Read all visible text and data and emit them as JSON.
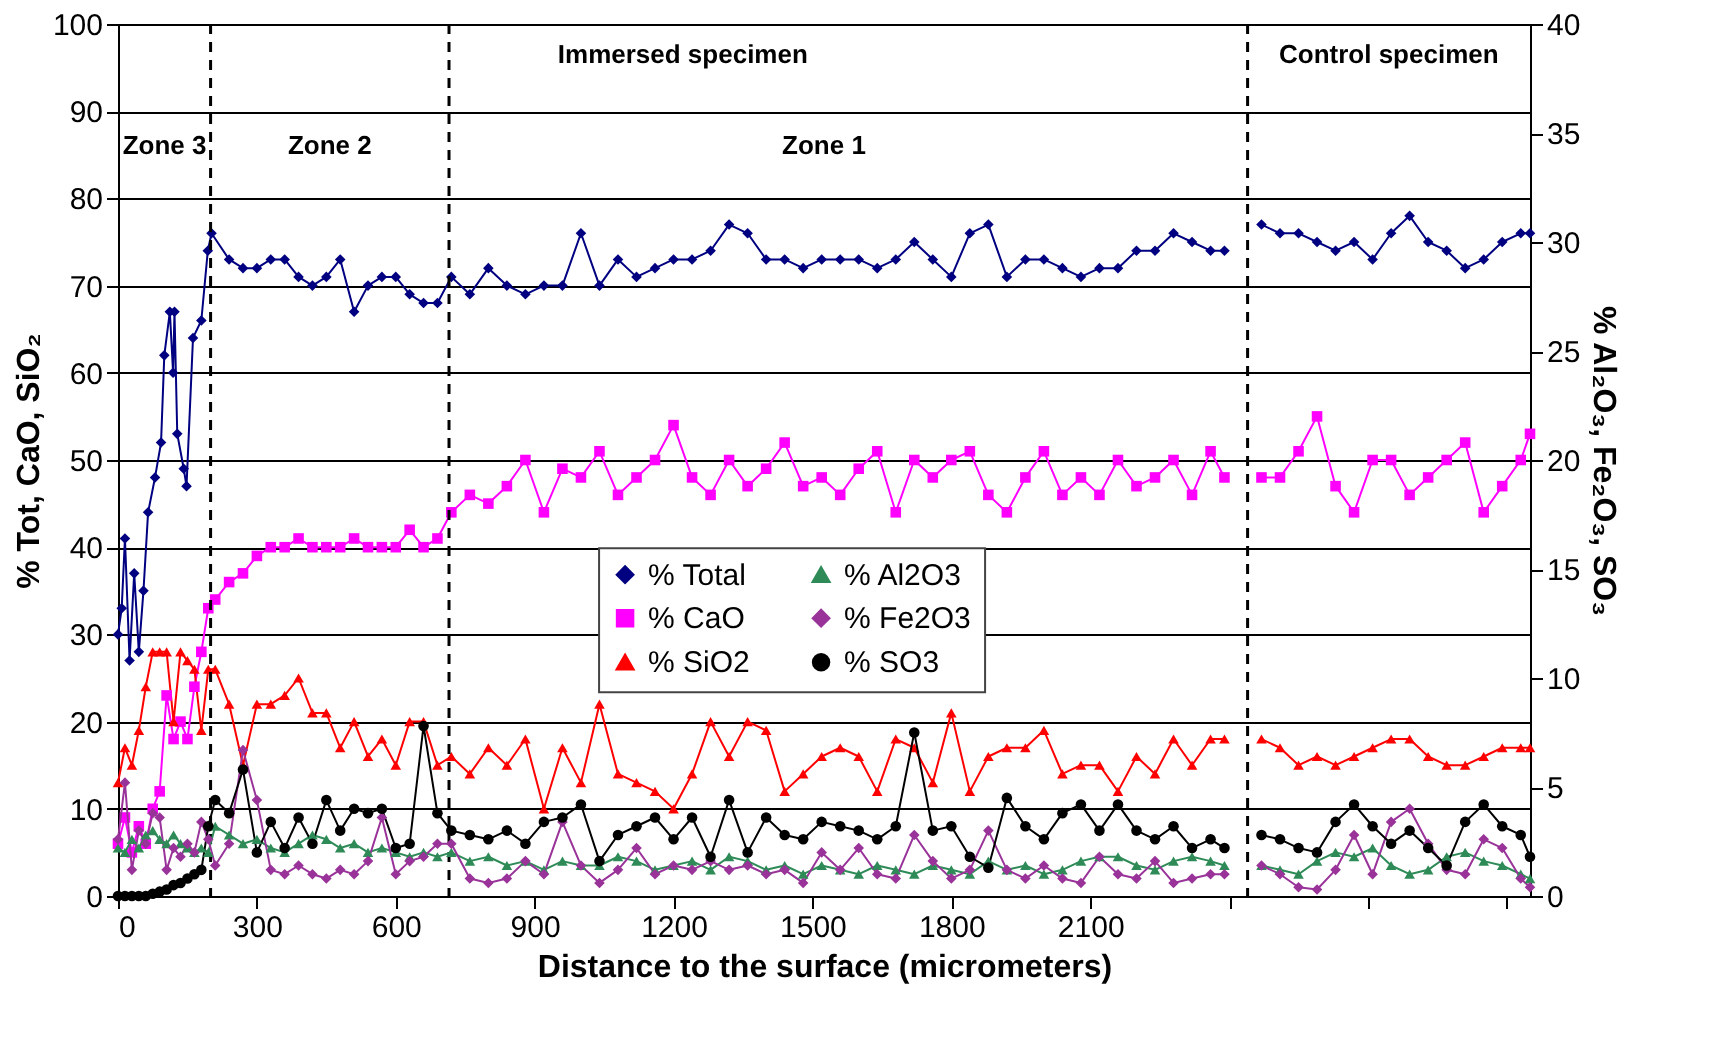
{
  "chart_data": {
    "type": "line",
    "xlabel": "Distance to the surface (micrometers)",
    "ylabel": "% Tot, CaO, SiO₂",
    "y2label": "% Al₂O₃, Fe₂O₃, SO₃",
    "xlim": [
      0,
      3050
    ],
    "ylim": [
      0,
      100
    ],
    "y2lim": [
      0,
      40
    ],
    "xticks": [
      0,
      300,
      600,
      900,
      1200,
      1500,
      1800,
      2100,
      {
        "value": 2400,
        "label": null
      },
      {
        "value": 2700,
        "label": null
      },
      {
        "value": 3000,
        "label": null
      }
    ],
    "yticks": [
      0,
      10,
      20,
      30,
      40,
      50,
      60,
      70,
      80,
      90,
      100
    ],
    "y2ticks": [
      0,
      5,
      10,
      15,
      20,
      25,
      30,
      35,
      40
    ],
    "grid": "y",
    "legend": "right",
    "annotations": [
      "Immersed specimen",
      "Control specimen",
      "Zone 3",
      "Zone 2",
      "Zone 1"
    ],
    "ref_lines": [
      {
        "axis": "x",
        "value": 200,
        "label": null,
        "line_style": "dashed"
      },
      {
        "axis": "x",
        "value": 715,
        "label": null,
        "line_style": "dashed"
      },
      {
        "axis": "x",
        "value": 2440,
        "label": null,
        "line_style": "dashed"
      }
    ],
    "x": [
      0,
      15,
      30,
      45,
      60,
      75,
      90,
      105,
      120,
      135,
      150,
      165,
      180,
      195,
      210,
      240,
      270,
      300,
      330,
      360,
      390,
      420,
      450,
      480,
      510,
      540,
      570,
      600,
      630,
      660,
      690,
      720,
      760,
      800,
      840,
      880,
      920,
      960,
      1000,
      1040,
      1080,
      1120,
      1160,
      1200,
      1240,
      1280,
      1320,
      1360,
      1400,
      1440,
      1480,
      1520,
      1560,
      1600,
      1640,
      1680,
      1720,
      1760,
      1800,
      1840,
      1880,
      1920,
      1960,
      2000,
      2040,
      2080,
      2120,
      2160,
      2200,
      2240,
      2280,
      2320,
      2360,
      2390,
      2440,
      2470,
      2510,
      2550,
      2590,
      2630,
      2670,
      2710,
      2750,
      2790,
      2830,
      2870,
      2910,
      2950,
      2990,
      3030,
      3050
    ],
    "series": [
      {
        "name": "% Total",
        "color": "#000080",
        "marker": "diamond",
        "x": [
          0,
          8,
          15,
          25,
          35,
          45,
          55,
          65,
          80,
          93,
          100,
          112,
          119,
          122,
          128,
          142,
          148,
          162,
          180,
          194,
          202,
          240,
          270,
          300,
          330,
          360,
          390,
          420,
          450,
          480,
          510,
          540,
          570,
          600,
          630,
          660,
          690,
          720,
          760,
          800,
          840,
          880,
          920,
          960,
          1000,
          1040,
          1080,
          1120,
          1160,
          1200,
          1240,
          1280,
          1320,
          1360,
          1400,
          1440,
          1480,
          1520,
          1560,
          1600,
          1640,
          1680,
          1720,
          1760,
          1800,
          1840,
          1880,
          1920,
          1960,
          2000,
          2040,
          2080,
          2120,
          2160,
          2200,
          2240,
          2280,
          2320,
          2360,
          2390,
          2440,
          2470,
          2510,
          2550,
          2590,
          2630,
          2670,
          2710,
          2750,
          2790,
          2830,
          2870,
          2910,
          2950,
          2990,
          3030,
          3050
        ],
        "values": [
          30,
          33,
          41,
          27,
          37,
          28,
          35,
          44,
          48,
          52,
          62,
          67,
          60,
          67,
          53,
          49,
          47,
          64,
          66,
          74,
          76,
          73,
          72,
          72,
          73,
          73,
          71,
          70,
          71,
          73,
          67,
          70,
          71,
          71,
          69,
          68,
          68,
          71,
          69,
          72,
          70,
          69,
          70,
          70,
          76,
          70,
          73,
          71,
          72,
          73,
          73,
          74,
          77,
          76,
          73,
          73,
          72,
          73,
          73,
          73,
          72,
          73,
          75,
          73,
          71,
          76,
          77,
          71,
          73,
          73,
          72,
          71,
          72,
          72,
          74,
          74,
          76,
          75,
          74,
          74,
          null,
          77,
          76,
          76,
          75,
          74,
          75,
          73,
          76,
          78,
          75,
          74,
          72,
          73,
          75,
          76,
          76
        ]
      },
      {
        "name": "% CaO",
        "color": "#ff00ff",
        "marker": "square",
        "values": [
          6,
          9,
          5,
          8,
          6,
          10,
          12,
          23,
          18,
          20,
          18,
          24,
          28,
          33,
          34,
          36,
          37,
          39,
          40,
          40,
          41,
          40,
          40,
          40,
          41,
          40,
          40,
          40,
          42,
          40,
          41,
          44,
          46,
          45,
          47,
          50,
          44,
          49,
          48,
          51,
          46,
          48,
          50,
          54,
          48,
          46,
          50,
          47,
          49,
          52,
          47,
          48,
          46,
          49,
          51,
          44,
          50,
          48,
          50,
          51,
          46,
          44,
          48,
          51,
          46,
          48,
          46,
          50,
          47,
          48,
          50,
          46,
          51,
          48,
          null,
          48,
          48,
          51,
          55,
          47,
          44,
          50,
          50,
          46,
          48,
          50,
          52,
          44,
          47,
          50,
          53
        ]
      },
      {
        "name": "% SiO2",
        "color": "#ff0000",
        "marker": "triangle",
        "values": [
          13,
          17,
          15,
          19,
          24,
          28,
          28,
          28,
          20,
          28,
          27,
          26,
          19,
          26,
          26,
          22,
          15,
          22,
          22,
          23,
          25,
          21,
          21,
          17,
          20,
          16,
          18,
          15,
          20,
          20,
          15,
          16,
          14,
          17,
          15,
          18,
          10,
          17,
          13,
          22,
          14,
          13,
          12,
          10,
          14,
          20,
          16,
          20,
          19,
          12,
          14,
          16,
          17,
          16,
          12,
          18,
          17,
          13,
          21,
          12,
          16,
          17,
          17,
          19,
          14,
          15,
          15,
          12,
          16,
          14,
          18,
          15,
          18,
          18,
          null,
          18,
          17,
          15,
          16,
          15,
          16,
          17,
          18,
          18,
          16,
          15,
          15,
          16,
          17,
          17,
          17
        ]
      },
      {
        "name": "% Al2O3",
        "color": "#2e8b57",
        "marker": "triangle",
        "axis": "y2",
        "values": [
          2.2,
          2.0,
          2.6,
          2.2,
          2.8,
          3.0,
          2.6,
          2.4,
          2.8,
          2.4,
          2.2,
          2.0,
          2.2,
          2.0,
          3.2,
          2.8,
          2.4,
          2.6,
          2.2,
          2.0,
          2.4,
          2.8,
          2.6,
          2.2,
          2.4,
          2.0,
          2.2,
          2.0,
          1.8,
          2.0,
          1.8,
          2.0,
          1.6,
          1.8,
          1.4,
          1.6,
          1.2,
          1.6,
          1.4,
          1.4,
          1.8,
          1.6,
          1.2,
          1.4,
          1.6,
          1.2,
          1.8,
          1.6,
          1.2,
          1.4,
          1.0,
          1.4,
          1.2,
          1.0,
          1.4,
          1.2,
          1.0,
          1.4,
          1.2,
          1.0,
          1.6,
          1.2,
          1.4,
          1.0,
          1.2,
          1.6,
          1.8,
          1.8,
          1.4,
          1.2,
          1.6,
          1.8,
          1.6,
          1.4,
          null,
          1.4,
          1.2,
          1.0,
          1.6,
          2.0,
          1.8,
          2.2,
          1.4,
          1.0,
          1.2,
          1.8,
          2.0,
          1.6,
          1.4,
          1.0,
          0.8
        ]
      },
      {
        "name": "% Fe2O3",
        "color": "#993399",
        "marker": "diamond",
        "axis": "y2",
        "values": [
          2.6,
          5.2,
          1.2,
          3.0,
          2.4,
          3.8,
          3.6,
          1.2,
          2.2,
          1.8,
          2.4,
          2.0,
          3.4,
          2.6,
          1.4,
          2.4,
          6.7,
          4.4,
          1.2,
          1.0,
          1.4,
          1.0,
          0.8,
          1.2,
          1.0,
          1.6,
          3.6,
          1.0,
          1.6,
          1.8,
          2.4,
          2.4,
          0.8,
          0.6,
          0.8,
          1.6,
          1.0,
          3.4,
          1.4,
          0.6,
          1.2,
          2.2,
          1.0,
          1.4,
          1.2,
          1.6,
          1.2,
          1.4,
          1.0,
          1.2,
          0.6,
          2.0,
          1.2,
          2.2,
          1.0,
          0.8,
          2.8,
          1.6,
          0.8,
          1.2,
          3.0,
          1.2,
          0.8,
          1.4,
          0.8,
          0.6,
          1.8,
          1.0,
          0.8,
          1.6,
          0.6,
          0.8,
          1.0,
          1.0,
          null,
          1.4,
          1.0,
          0.4,
          0.3,
          1.2,
          2.8,
          1.0,
          3.4,
          4.0,
          2.4,
          1.2,
          1.0,
          2.6,
          2.2,
          0.8,
          0.4
        ]
      },
      {
        "name": "% SO3",
        "color": "#000000",
        "marker": "circle",
        "axis": "y2",
        "values": [
          0,
          0,
          0,
          0,
          0,
          0.1,
          0.2,
          0.3,
          0.5,
          0.6,
          0.8,
          1.0,
          1.2,
          3.2,
          4.4,
          3.8,
          5.8,
          2.0,
          3.4,
          2.2,
          3.6,
          2.4,
          4.4,
          3.0,
          4.0,
          3.8,
          4.0,
          2.2,
          2.4,
          7.8,
          3.8,
          3.0,
          2.8,
          2.6,
          3.0,
          2.4,
          3.4,
          3.6,
          4.2,
          1.6,
          2.8,
          3.2,
          3.6,
          2.6,
          3.6,
          1.8,
          4.4,
          2.0,
          3.6,
          2.8,
          2.6,
          3.4,
          3.2,
          3.0,
          2.6,
          3.2,
          7.5,
          3.0,
          3.2,
          1.8,
          1.3,
          4.5,
          3.2,
          2.6,
          3.8,
          4.2,
          3.0,
          4.2,
          3.0,
          2.6,
          3.2,
          2.2,
          2.6,
          2.2,
          null,
          2.8,
          2.6,
          2.2,
          2.0,
          3.4,
          4.2,
          3.2,
          2.4,
          3.0,
          2.2,
          1.4,
          3.4,
          4.2,
          3.2,
          2.8,
          1.8
        ]
      }
    ]
  }
}
